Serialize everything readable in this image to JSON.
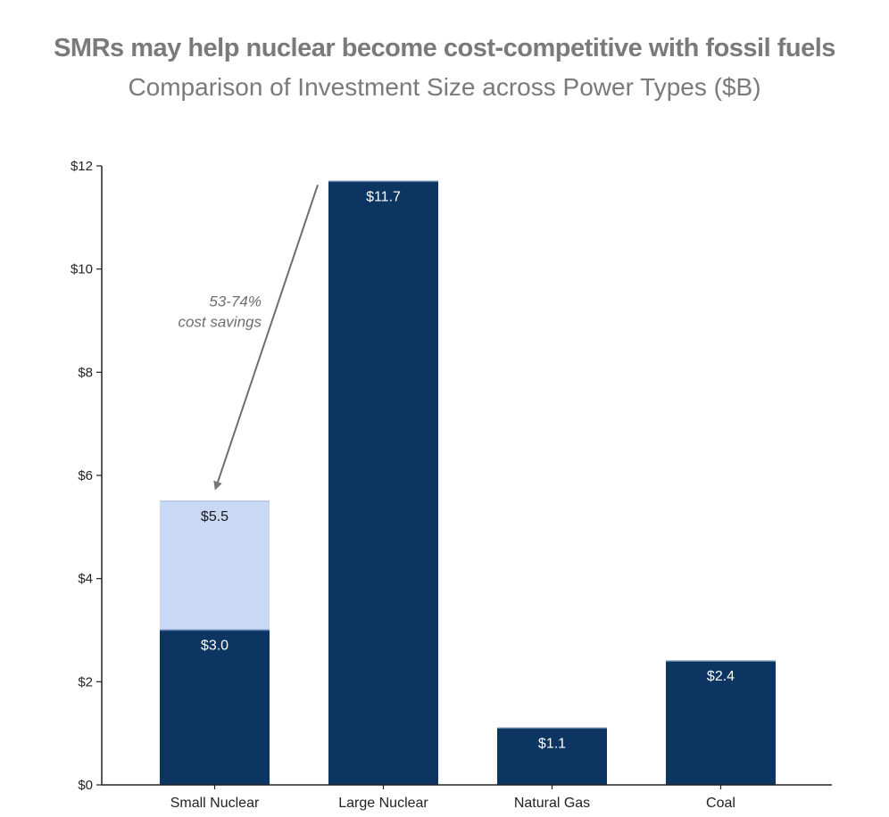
{
  "chart_data": {
    "type": "bar",
    "title": "SMRs may help nuclear become cost-competitive with fossil fuels",
    "subtitle": "Comparison of Investment Size across Power Types ($B)",
    "categories": [
      "Small Nuclear",
      "Large Nuclear",
      "Natural Gas",
      "Coal"
    ],
    "series": [
      {
        "values": [
          3.0,
          11.7,
          1.1,
          2.4
        ],
        "labels": [
          "$3.0",
          "$11.7",
          "$1.1",
          "$2.4"
        ],
        "color": "#0d3562"
      },
      {
        "values": [
          5.5,
          null,
          null,
          null
        ],
        "labels": [
          "$5.5",
          null,
          null,
          null
        ],
        "color": "#c9d9f5"
      }
    ],
    "ylim": [
      0,
      12
    ],
    "yticks": [
      0,
      2,
      4,
      6,
      8,
      10,
      12
    ],
    "ytick_labels": [
      "$0",
      "$2",
      "$4",
      "$6",
      "$8",
      "$10",
      "$12"
    ],
    "xlabel": "",
    "ylabel": "",
    "grid": false,
    "legend": "none",
    "annotation": {
      "lines": [
        "53-74%",
        "cost savings"
      ],
      "arrow_from": {
        "category": "Large Nuclear",
        "value": 11.7
      },
      "arrow_to": {
        "category": "Small Nuclear",
        "value": 5.5
      }
    },
    "colors": {
      "axis": "#222222",
      "annotation": "#6e6e6e",
      "title": "#7a7a7a"
    }
  }
}
